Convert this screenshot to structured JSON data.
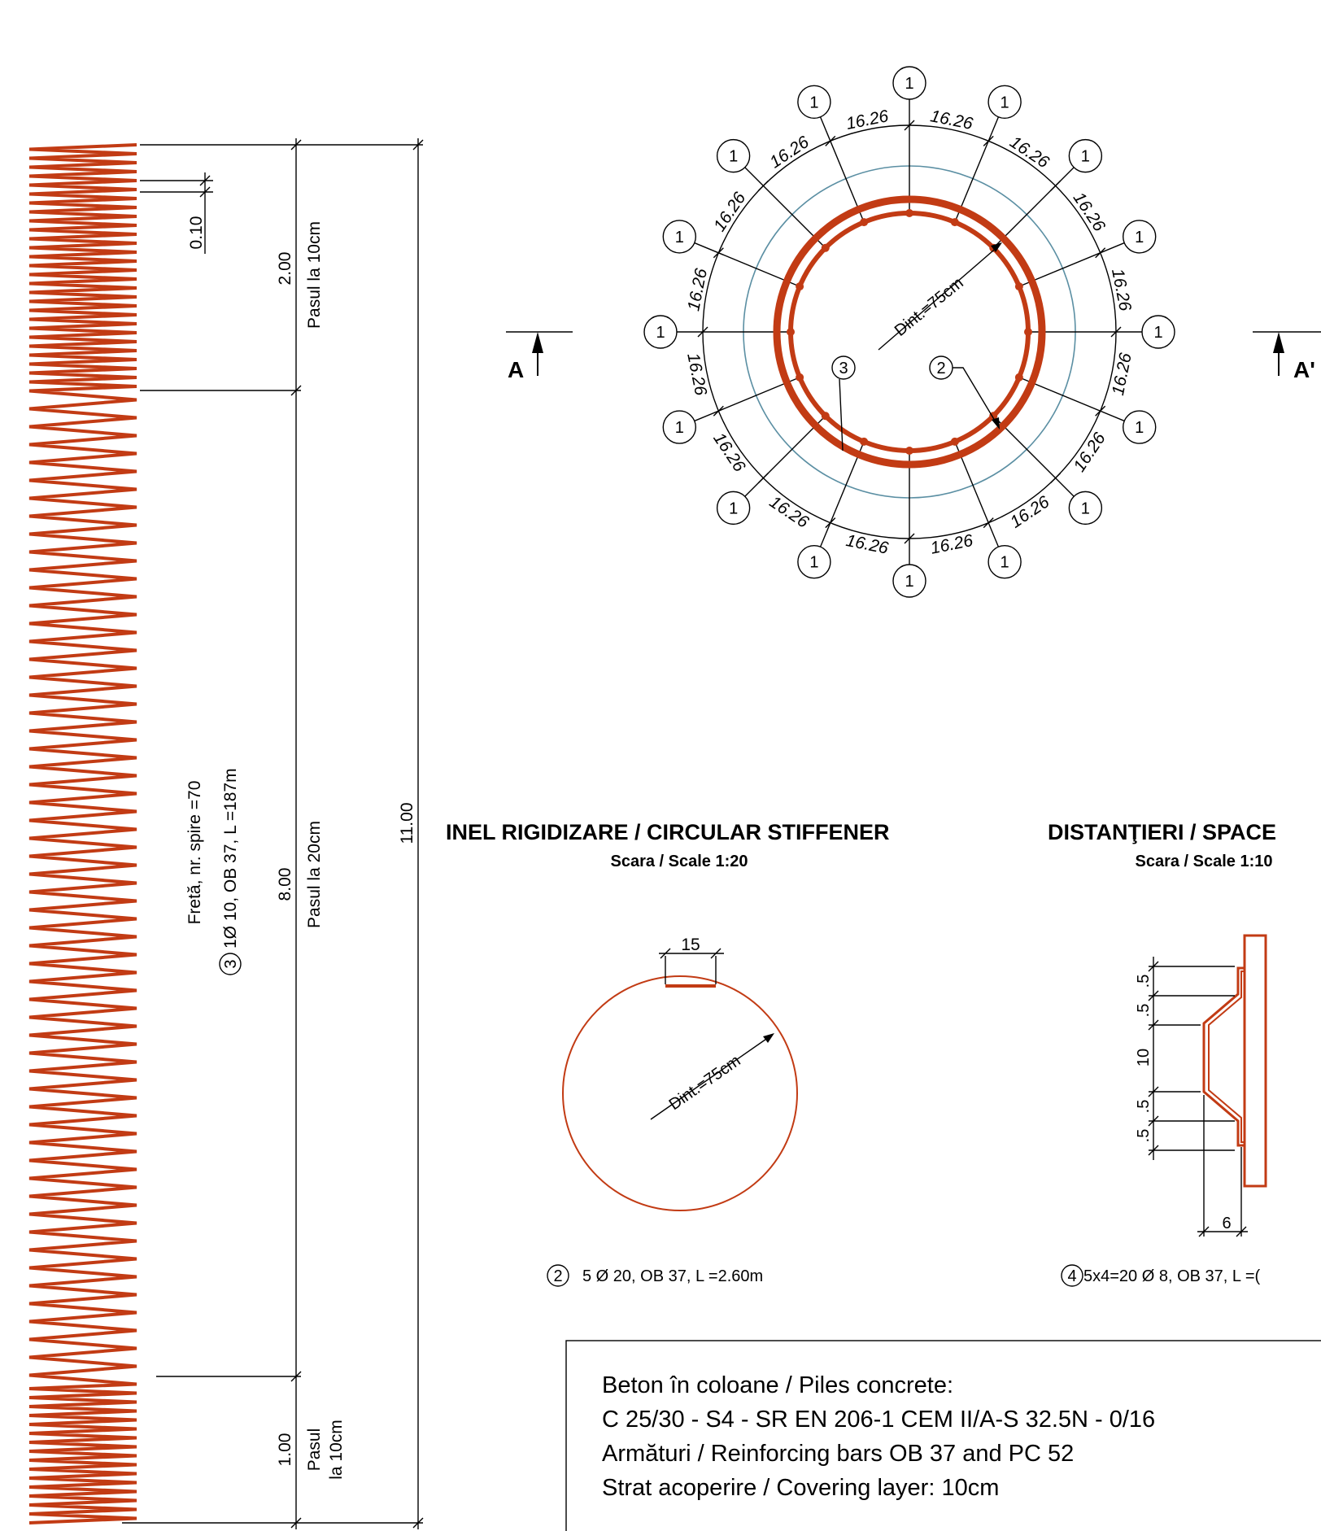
{
  "left_elevation": {
    "pitch_top_value": "0.10",
    "seg1_length": "2.00",
    "seg1_label": "Pasul la 10cm",
    "seg2_length": "8.00",
    "seg2_label": "Pasul la 20cm",
    "seg3_length": "1.00",
    "seg3_label_line1": "Pasul",
    "seg3_label_line2": "la 10cm",
    "total_length": "11.00",
    "note_line1": "Fretă, nr. spire =70",
    "note_marker": "3",
    "note_line2": "1Ø 10, OB 37, L =187m"
  },
  "section": {
    "left_mark": "A",
    "right_mark": "A'",
    "diameter_label": "Dint.=75cm",
    "bar_marker": "1",
    "spacing": "16.26",
    "marker_2": "2",
    "marker_3": "3"
  },
  "stiffener": {
    "title": "INEL RIGIDIZARE / CIRCULAR STIFFENER",
    "scale": "Scara / Scale 1:20",
    "overlap": "15",
    "diameter_label": "Dint.=75cm",
    "marker": "2",
    "spec": "5 Ø 20, OB 37, L =2.60m"
  },
  "spacers": {
    "title": "DISTANŢIERI / SPACE",
    "scale": "Scara / Scale 1:10",
    "dims": [
      ".5",
      ".5",
      "10",
      ".5",
      ".5"
    ],
    "width": "6",
    "marker": "4",
    "spec": "5x4=20 Ø 8, OB 37, L =("
  },
  "notes": {
    "line1": "Beton în coloane / Piles concrete:",
    "line2": "C 25/30 - S4 - SR EN 206-1 CEM II/A-S 32.5N - 0/16",
    "line3": "Armături / Reinforcing bars OB 37 and PC 52",
    "line4": "Strat acoperire / Covering layer: 10cm"
  },
  "colors": {
    "reinforcement": "#c23b14",
    "reference_circle": "#5b8fa3",
    "lines": "#000000"
  }
}
